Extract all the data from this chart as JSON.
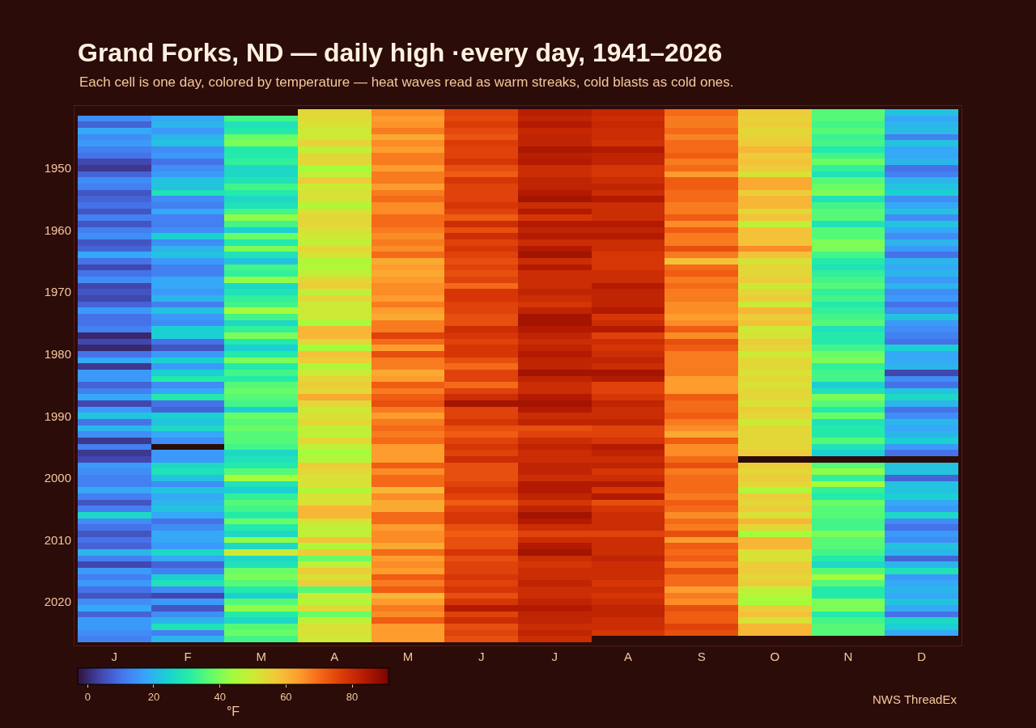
{
  "chart_data": {
    "type": "heatmap",
    "title": "Grand Forks, ND — daily high ·every day, 1941–2026",
    "subtitle": "Each cell is one day, colored by temperature — heat waves read as warm streaks, cold blasts as cold ones.",
    "categories": [
      "J",
      "F",
      "M",
      "A",
      "M",
      "J",
      "J",
      "A",
      "S",
      "O",
      "N",
      "D"
    ],
    "y_categories": [
      null,
      null,
      null,
      null,
      null,
      null,
      null,
      null,
      null,
      "1950",
      null,
      null,
      null,
      null,
      null,
      null,
      null,
      null,
      null,
      "1960",
      null,
      null,
      null,
      null,
      null,
      null,
      null,
      null,
      null,
      "1970",
      null,
      null,
      null,
      null,
      null,
      null,
      null,
      null,
      null,
      "1980",
      null,
      null,
      null,
      null,
      null,
      null,
      null,
      null,
      null,
      "1990",
      null,
      null,
      null,
      null,
      null,
      null,
      null,
      null,
      null,
      "2000",
      null,
      null,
      null,
      null,
      null,
      null,
      null,
      null,
      null,
      "2010",
      null,
      null,
      null,
      null,
      null,
      null,
      null,
      null,
      null,
      "2020",
      null,
      null,
      null,
      null,
      null,
      null
    ],
    "cells": [
      [
        null,
        null,
        null,
        54,
        66,
        76,
        83,
        81,
        70,
        56,
        36,
        22
      ],
      [
        14,
        18,
        34,
        53,
        64,
        75,
        82,
        80,
        68,
        55,
        36,
        18
      ],
      [
        8,
        20,
        28,
        52,
        65,
        77,
        84,
        81,
        68,
        56,
        34,
        20
      ],
      [
        18,
        16,
        30,
        50,
        68,
        75,
        81,
        80,
        70,
        54,
        36,
        21
      ],
      [
        14,
        20,
        38,
        50,
        62,
        73,
        82,
        80,
        67,
        55,
        33,
        12
      ],
      [
        16,
        22,
        40,
        55,
        66,
        77,
        82,
        79,
        70,
        56,
        34,
        22
      ],
      [
        12,
        14,
        30,
        48,
        64,
        76,
        85,
        84,
        70,
        60,
        30,
        18
      ],
      [
        10,
        16,
        30,
        54,
        68,
        76,
        83,
        82,
        72,
        56,
        34,
        18
      ],
      [
        4,
        10,
        32,
        54,
        68,
        78,
        84,
        82,
        68,
        58,
        38,
        20
      ],
      [
        2,
        14,
        26,
        44,
        64,
        74,
        80,
        78,
        70,
        56,
        32,
        10
      ],
      [
        8,
        16,
        26,
        48,
        68,
        72,
        80,
        78,
        64,
        52,
        28,
        12
      ],
      [
        14,
        22,
        28,
        56,
        68,
        78,
        82,
        80,
        72,
        62,
        36,
        20
      ],
      [
        12,
        22,
        34,
        50,
        64,
        76,
        82,
        82,
        72,
        62,
        38,
        22
      ],
      [
        6,
        28,
        30,
        52,
        68,
        76,
        84,
        80,
        70,
        56,
        40,
        24
      ],
      [
        8,
        14,
        26,
        52,
        70,
        76,
        86,
        84,
        70,
        60,
        28,
        14
      ],
      [
        10,
        12,
        28,
        46,
        66,
        78,
        80,
        80,
        68,
        60,
        34,
        18
      ],
      [
        6,
        18,
        34,
        52,
        66,
        76,
        84,
        80,
        68,
        54,
        36,
        22
      ],
      [
        12,
        12,
        42,
        54,
        70,
        72,
        78,
        80,
        72,
        58,
        36,
        14
      ],
      [
        6,
        12,
        34,
        54,
        70,
        80,
        84,
        84,
        66,
        48,
        28,
        22
      ],
      [
        12,
        14,
        24,
        52,
        68,
        74,
        82,
        82,
        72,
        58,
        36,
        18
      ],
      [
        14,
        24,
        38,
        50,
        66,
        80,
        84,
        84,
        68,
        58,
        36,
        14
      ],
      [
        6,
        14,
        30,
        48,
        68,
        76,
        80,
        80,
        68,
        58,
        40,
        20
      ],
      [
        8,
        20,
        40,
        54,
        66,
        78,
        84,
        80,
        74,
        66,
        40,
        16
      ],
      [
        18,
        22,
        28,
        52,
        70,
        76,
        86,
        78,
        68,
        58,
        34,
        10
      ],
      [
        10,
        16,
        22,
        46,
        62,
        74,
        80,
        78,
        58,
        52,
        30,
        20
      ],
      [
        4,
        12,
        34,
        46,
        64,
        76,
        84,
        78,
        70,
        54,
        28,
        18
      ],
      [
        10,
        12,
        32,
        48,
        62,
        74,
        80,
        80,
        72,
        54,
        32,
        20
      ],
      [
        14,
        18,
        42,
        54,
        64,
        76,
        80,
        80,
        68,
        56,
        34,
        16
      ],
      [
        4,
        18,
        26,
        56,
        66,
        70,
        80,
        84,
        70,
        50,
        36,
        20
      ],
      [
        6,
        16,
        28,
        48,
        66,
        78,
        82,
        82,
        68,
        54,
        32,
        14
      ],
      [
        4,
        20,
        32,
        54,
        64,
        78,
        80,
        82,
        68,
        56,
        34,
        16
      ],
      [
        8,
        12,
        34,
        50,
        68,
        76,
        78,
        82,
        66,
        50,
        30,
        10
      ],
      [
        16,
        22,
        44,
        50,
        64,
        76,
        82,
        84,
        66,
        60,
        32,
        14
      ],
      [
        10,
        16,
        34,
        50,
        62,
        74,
        86,
        78,
        64,
        56,
        34,
        22
      ],
      [
        10,
        14,
        26,
        44,
        68,
        74,
        86,
        80,
        66,
        58,
        36,
        16
      ],
      [
        12,
        24,
        32,
        60,
        68,
        80,
        84,
        84,
        72,
        50,
        28,
        14
      ],
      [
        0,
        24,
        40,
        60,
        76,
        78,
        82,
        76,
        66,
        52,
        30,
        12
      ],
      [
        4,
        10,
        30,
        54,
        70,
        76,
        80,
        80,
        74,
        56,
        30,
        10
      ],
      [
        0,
        6,
        24,
        44,
        64,
        78,
        82,
        78,
        72,
        54,
        34,
        24
      ],
      [
        10,
        16,
        30,
        58,
        74,
        78,
        84,
        80,
        68,
        50,
        38,
        18
      ],
      [
        18,
        24,
        40,
        56,
        68,
        74,
        82,
        82,
        68,
        54,
        40,
        18
      ],
      [
        2,
        16,
        30,
        46,
        68,
        70,
        82,
        80,
        68,
        54,
        32,
        20
      ],
      [
        16,
        24,
        34,
        50,
        62,
        76,
        86,
        86,
        68,
        52,
        34,
        4
      ],
      [
        16,
        30,
        30,
        54,
        64,
        76,
        82,
        84,
        64,
        54,
        34,
        14
      ],
      [
        8,
        14,
        36,
        56,
        72,
        70,
        80,
        76,
        64,
        52,
        24,
        10
      ],
      [
        12,
        18,
        38,
        54,
        68,
        76,
        80,
        76,
        64,
        54,
        28,
        22
      ],
      [
        18,
        30,
        36,
        62,
        72,
        80,
        84,
        78,
        72,
        54,
        40,
        26
      ],
      [
        4,
        10,
        34,
        54,
        74,
        86,
        86,
        82,
        70,
        52,
        36,
        20
      ],
      [
        16,
        8,
        24,
        50,
        68,
        76,
        84,
        80,
        70,
        56,
        30,
        10
      ],
      [
        22,
        24,
        38,
        52,
        64,
        76,
        80,
        80,
        72,
        54,
        38,
        14
      ],
      [
        10,
        22,
        36,
        54,
        68,
        78,
        82,
        82,
        68,
        50,
        28,
        20
      ],
      [
        20,
        26,
        38,
        48,
        70,
        74,
        74,
        76,
        66,
        54,
        30,
        18
      ],
      [
        14,
        18,
        36,
        48,
        68,
        72,
        76,
        76,
        62,
        54,
        30,
        20
      ],
      [
        2,
        14,
        36,
        54,
        70,
        76,
        80,
        78,
        72,
        54,
        36,
        24
      ],
      [
        12,
        null,
        34,
        48,
        64,
        78,
        82,
        84,
        66,
        54,
        28,
        16
      ],
      [
        2,
        16,
        26,
        44,
        64,
        76,
        80,
        82,
        66,
        56,
        24,
        10
      ],
      [
        4,
        16,
        28,
        46,
        64,
        80,
        80,
        80,
        70,
        null,
        null,
        null
      ],
      [
        16,
        26,
        30,
        56,
        72,
        74,
        82,
        82,
        74,
        56,
        36,
        22
      ],
      [
        14,
        28,
        36,
        54,
        66,
        74,
        82,
        78,
        68,
        54,
        42,
        22
      ],
      [
        12,
        22,
        44,
        52,
        70,
        74,
        80,
        80,
        70,
        56,
        32,
        8
      ],
      [
        12,
        14,
        28,
        52,
        70,
        76,
        84,
        84,
        70,
        54,
        44,
        22
      ],
      [
        18,
        22,
        24,
        46,
        60,
        78,
        84,
        78,
        70,
        46,
        32,
        22
      ],
      [
        12,
        18,
        32,
        52,
        66,
        76,
        82,
        84,
        68,
        56,
        30,
        24
      ],
      [
        6,
        20,
        36,
        52,
        62,
        72,
        78,
        74,
        72,
        54,
        38,
        18
      ],
      [
        12,
        22,
        34,
        60,
        62,
        76,
        82,
        78,
        70,
        56,
        36,
        16
      ],
      [
        26,
        18,
        30,
        60,
        70,
        78,
        86,
        80,
        66,
        52,
        36,
        26
      ],
      [
        14,
        10,
        38,
        52,
        70,
        78,
        84,
        80,
        70,
        60,
        34,
        14
      ],
      [
        10,
        14,
        30,
        48,
        64,
        74,
        80,
        80,
        68,
        54,
        34,
        10
      ],
      [
        6,
        18,
        26,
        48,
        66,
        72,
        76,
        76,
        74,
        44,
        40,
        16
      ],
      [
        10,
        18,
        42,
        58,
        66,
        74,
        80,
        80,
        64,
        60,
        36,
        14
      ],
      [
        8,
        16,
        26,
        46,
        62,
        74,
        84,
        80,
        72,
        60,
        36,
        22
      ],
      [
        20,
        26,
        50,
        56,
        70,
        78,
        86,
        80,
        70,
        52,
        34,
        20
      ],
      [
        12,
        18,
        26,
        38,
        64,
        74,
        80,
        82,
        72,
        52,
        30,
        8
      ],
      [
        4,
        8,
        28,
        48,
        66,
        76,
        78,
        80,
        68,
        56,
        26,
        20
      ],
      [
        16,
        12,
        38,
        56,
        64,
        76,
        80,
        80,
        74,
        56,
        36,
        28
      ],
      [
        12,
        24,
        40,
        52,
        72,
        78,
        80,
        80,
        70,
        54,
        44,
        16
      ],
      [
        16,
        28,
        36,
        56,
        68,
        76,
        82,
        78,
        70,
        56,
        36,
        18
      ],
      [
        10,
        14,
        30,
        36,
        72,
        78,
        80,
        80,
        64,
        48,
        30,
        20
      ],
      [
        6,
        4,
        24,
        50,
        60,
        74,
        80,
        78,
        68,
        46,
        30,
        18
      ],
      [
        14,
        16,
        36,
        46,
        64,
        78,
        82,
        80,
        66,
        44,
        40,
        22
      ],
      [
        18,
        6,
        42,
        54,
        68,
        84,
        84,
        82,
        74,
        56,
        40,
        18
      ],
      [
        8,
        14,
        30,
        38,
        66,
        76,
        82,
        82,
        72,
        58,
        30,
        10
      ],
      [
        16,
        20,
        26,
        48,
        72,
        80,
        82,
        80,
        72,
        52,
        34,
        26
      ],
      [
        16,
        28,
        36,
        52,
        64,
        74,
        80,
        80,
        76,
        60,
        36,
        24
      ],
      [
        14,
        12,
        38,
        52,
        64,
        76,
        82,
        78,
        74,
        60,
        36,
        18
      ],
      [
        12,
        20,
        34,
        50,
        64,
        74,
        80,
        null,
        null,
        null,
        null,
        null
      ]
    ],
    "clim": [
      -3,
      91
    ],
    "cticks": [
      0,
      20,
      40,
      60,
      80
    ],
    "clabel": "°F",
    "annotations": [
      "NWS ThreadEx"
    ]
  }
}
